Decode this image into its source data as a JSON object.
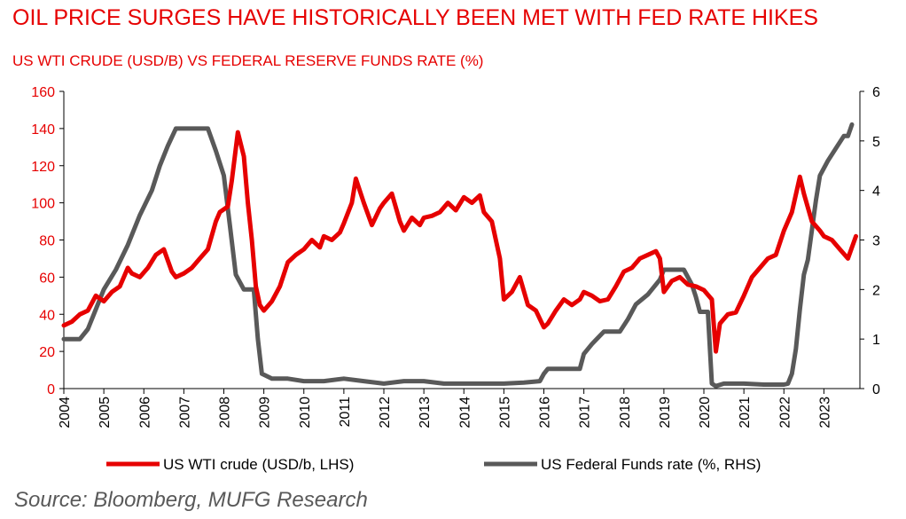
{
  "chart_data": {
    "type": "line",
    "title": "OIL PRICE SURGES HAVE HISTORICALLY BEEN MET WITH FED RATE HIKES",
    "subtitle": "US WTI CRUDE (USD/B) VS FEDERAL RESERVE FUNDS RATE (%)",
    "source": "Source: Bloomberg, MUFG Research",
    "grid": false,
    "legend_position": "bottom",
    "x_ticks": [
      "2004",
      "2005",
      "2006",
      "2007",
      "2008",
      "2009",
      "2010",
      "2011",
      "2012",
      "2013",
      "2014",
      "2015",
      "2016",
      "2017",
      "2018",
      "2019",
      "2020",
      "2021",
      "2022",
      "2023"
    ],
    "xlim": [
      2004,
      2023.9
    ],
    "y_left": {
      "ticks": [
        "0",
        "20",
        "40",
        "60",
        "80",
        "100",
        "120",
        "140",
        "160"
      ],
      "ylim": [
        0,
        160
      ]
    },
    "y_right": {
      "ticks": [
        "0",
        "1",
        "2",
        "3",
        "4",
        "5",
        "6"
      ],
      "ylim": [
        0,
        6
      ]
    },
    "colors": {
      "oil": "#e60000",
      "fed": "#595959",
      "axis_left": "#e60000",
      "axis_right": "#000000"
    },
    "series": [
      {
        "name": "US WTI crude (USD/b, LHS)",
        "axis": "left",
        "x": [
          2004.0,
          2004.2,
          2004.4,
          2004.6,
          2004.8,
          2005.0,
          2005.2,
          2005.4,
          2005.6,
          2005.7,
          2005.9,
          2006.1,
          2006.3,
          2006.5,
          2006.7,
          2006.8,
          2007.0,
          2007.2,
          2007.4,
          2007.6,
          2007.8,
          2007.9,
          2008.1,
          2008.2,
          2008.35,
          2008.5,
          2008.6,
          2008.7,
          2008.8,
          2008.9,
          2009.0,
          2009.2,
          2009.4,
          2009.6,
          2009.8,
          2010.0,
          2010.2,
          2010.4,
          2010.5,
          2010.7,
          2010.9,
          2011.0,
          2011.2,
          2011.3,
          2011.5,
          2011.7,
          2011.9,
          2012.0,
          2012.2,
          2012.4,
          2012.5,
          2012.7,
          2012.9,
          2013.0,
          2013.2,
          2013.4,
          2013.6,
          2013.8,
          2014.0,
          2014.2,
          2014.4,
          2014.5,
          2014.7,
          2014.9,
          2015.0,
          2015.2,
          2015.4,
          2015.6,
          2015.8,
          2016.0,
          2016.1,
          2016.3,
          2016.5,
          2016.7,
          2016.9,
          2017.0,
          2017.2,
          2017.4,
          2017.6,
          2017.8,
          2018.0,
          2018.2,
          2018.4,
          2018.6,
          2018.8,
          2018.9,
          2019.0,
          2019.2,
          2019.4,
          2019.6,
          2019.8,
          2020.0,
          2020.2,
          2020.3,
          2020.4,
          2020.6,
          2020.8,
          2021.0,
          2021.2,
          2021.4,
          2021.6,
          2021.8,
          2022.0,
          2022.2,
          2022.4,
          2022.5,
          2022.7,
          2022.9,
          2023.0,
          2023.2,
          2023.4,
          2023.6,
          2023.8
        ],
        "values": [
          34,
          36,
          40,
          42,
          50,
          47,
          52,
          55,
          65,
          62,
          60,
          65,
          72,
          75,
          63,
          60,
          62,
          65,
          70,
          75,
          90,
          95,
          98,
          112,
          138,
          125,
          100,
          80,
          55,
          45,
          42,
          47,
          55,
          68,
          72,
          75,
          80,
          76,
          82,
          80,
          84,
          89,
          100,
          113,
          100,
          88,
          97,
          100,
          105,
          90,
          85,
          92,
          88,
          92,
          93,
          95,
          100,
          96,
          103,
          100,
          104,
          95,
          90,
          70,
          48,
          52,
          60,
          45,
          42,
          33,
          35,
          42,
          48,
          45,
          48,
          52,
          50,
          47,
          48,
          55,
          63,
          65,
          70,
          72,
          74,
          70,
          52,
          58,
          60,
          56,
          55,
          53,
          48,
          20,
          35,
          40,
          41,
          50,
          60,
          65,
          70,
          72,
          85,
          95,
          114,
          105,
          90,
          85,
          82,
          80,
          75,
          70,
          82
        ]
      },
      {
        "name": "US Federal Funds rate (%, RHS)",
        "axis": "right",
        "x": [
          2004.0,
          2004.4,
          2004.6,
          2004.8,
          2005.0,
          2005.3,
          2005.6,
          2005.9,
          2006.2,
          2006.4,
          2006.6,
          2006.8,
          2007.0,
          2007.3,
          2007.6,
          2007.8,
          2008.0,
          2008.15,
          2008.3,
          2008.5,
          2008.75,
          2008.85,
          2008.95,
          2009.2,
          2009.6,
          2010.0,
          2010.5,
          2011.0,
          2011.5,
          2012.0,
          2012.5,
          2013.0,
          2013.5,
          2014.0,
          2014.5,
          2015.0,
          2015.5,
          2015.9,
          2016.0,
          2016.1,
          2016.5,
          2016.9,
          2017.0,
          2017.2,
          2017.5,
          2017.9,
          2018.1,
          2018.3,
          2018.6,
          2018.9,
          2019.0,
          2019.3,
          2019.5,
          2019.7,
          2019.8,
          2019.9,
          2020.1,
          2020.2,
          2020.3,
          2020.5,
          2021.0,
          2021.5,
          2022.0,
          2022.1,
          2022.2,
          2022.3,
          2022.4,
          2022.5,
          2022.6,
          2022.8,
          2022.9,
          2023.1,
          2023.3,
          2023.5,
          2023.6,
          2023.7
        ],
        "values": [
          1.0,
          1.0,
          1.2,
          1.6,
          2.0,
          2.4,
          2.9,
          3.5,
          4.0,
          4.5,
          4.9,
          5.25,
          5.25,
          5.25,
          5.25,
          4.8,
          4.3,
          3.3,
          2.3,
          2.0,
          2.0,
          1.0,
          0.3,
          0.2,
          0.2,
          0.15,
          0.15,
          0.2,
          0.15,
          0.1,
          0.15,
          0.15,
          0.1,
          0.1,
          0.1,
          0.1,
          0.12,
          0.15,
          0.3,
          0.4,
          0.4,
          0.4,
          0.7,
          0.9,
          1.15,
          1.15,
          1.4,
          1.7,
          1.9,
          2.2,
          2.4,
          2.4,
          2.4,
          2.1,
          1.85,
          1.55,
          1.55,
          0.1,
          0.05,
          0.1,
          0.1,
          0.08,
          0.08,
          0.1,
          0.3,
          0.8,
          1.6,
          2.3,
          2.6,
          3.8,
          4.3,
          4.6,
          4.85,
          5.1,
          5.1,
          5.33
        ]
      }
    ]
  }
}
